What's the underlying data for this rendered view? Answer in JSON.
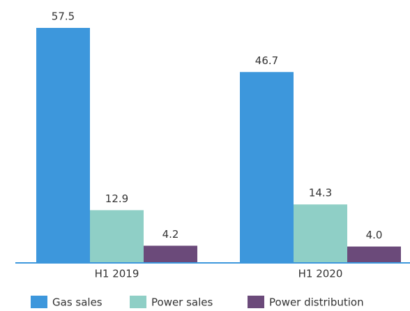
{
  "chart_data": {
    "type": "bar",
    "categories": [
      "H1 2019",
      "H1 2020"
    ],
    "series": [
      {
        "name": "Gas sales",
        "color": "#3d97dc",
        "values": [
          57.5,
          46.7
        ]
      },
      {
        "name": "Power sales",
        "color": "#8fcfc6",
        "values": [
          12.9,
          14.3
        ]
      },
      {
        "name": "Power distribution",
        "color": "#6b4a7a",
        "values": [
          4.2,
          4.0
        ],
        "value_labels": [
          "4.2",
          "4.0"
        ]
      }
    ]
  }
}
